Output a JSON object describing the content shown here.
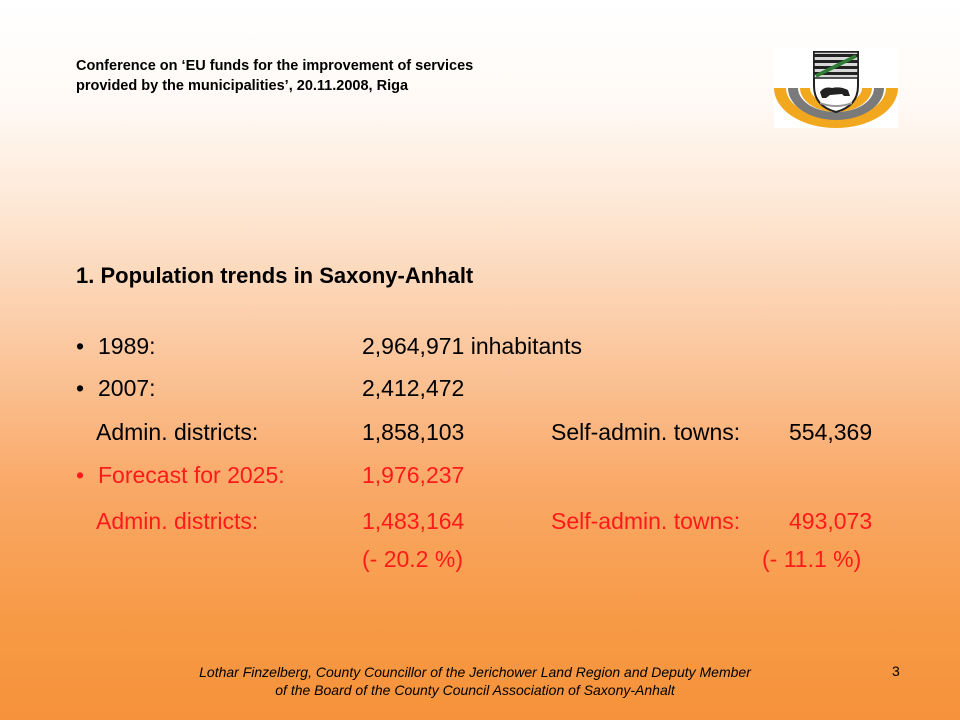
{
  "header": {
    "line1": "Conference on ‘EU funds for the improvement of services",
    "line2": "provided by the municipalities’, 20.11.2008, Riga"
  },
  "logo": {
    "icon": "saxony-anhalt-coat-of-arms"
  },
  "title": "1.  Population trends in Saxony-Anhalt",
  "bullet": "•",
  "rows": {
    "r1989": {
      "label": "1989:",
      "value": "2,964,971 inhabitants"
    },
    "r2007": {
      "label": "2007:",
      "value": "2,412,472"
    },
    "districts2007": {
      "label": "Admin. districts:",
      "value": "1,858,103",
      "towns_label": "Self-admin. towns:",
      "towns_value": "554,369"
    },
    "forecast": {
      "label": "Forecast for 2025:",
      "value": "1,976,237"
    },
    "districts2025": {
      "label": "Admin. districts:",
      "value": "1,483,164",
      "towns_label": "Self-admin. towns:",
      "towns_value": "493,073"
    },
    "change": {
      "districts": "(- 20.2 %)",
      "towns": "(- 11.1 %)"
    }
  },
  "colors": {
    "highlight": "#ff1a1a"
  },
  "footer": {
    "line1": "Lothar Finzelberg, County Councillor of the Jerichower Land Region and Deputy Member",
    "line2": "of the Board of the County Council Association of Saxony-Anhalt"
  },
  "page_number": "3"
}
